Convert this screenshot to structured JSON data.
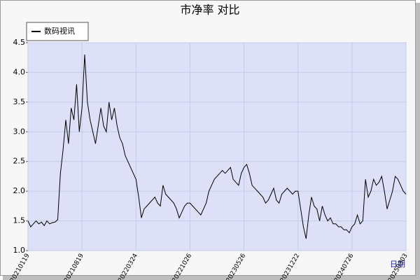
{
  "chart_data": {
    "type": "line",
    "title": "市净率  对比",
    "x_label": "日期",
    "categories": [
      "20210119",
      null,
      null,
      null,
      null,
      null,
      null,
      null,
      null,
      null,
      null,
      null,
      null,
      null,
      null,
      null,
      null,
      null,
      null,
      null,
      "20210819",
      null,
      null,
      null,
      null,
      null,
      null,
      null,
      null,
      null,
      null,
      null,
      null,
      null,
      null,
      null,
      null,
      null,
      null,
      null,
      "20220324",
      null,
      null,
      null,
      null,
      null,
      null,
      null,
      null,
      null,
      null,
      null,
      null,
      null,
      null,
      null,
      null,
      null,
      null,
      null,
      "20221026",
      null,
      null,
      null,
      null,
      null,
      null,
      null,
      null,
      null,
      null,
      null,
      null,
      null,
      null,
      null,
      null,
      null,
      null,
      null,
      "20230526",
      null,
      null,
      null,
      null,
      null,
      null,
      null,
      null,
      null,
      null,
      null,
      null,
      null,
      null,
      null,
      null,
      null,
      null,
      null,
      "20231222",
      null,
      null,
      null,
      null,
      null,
      null,
      null,
      null,
      null,
      null,
      null,
      null,
      null,
      null,
      null,
      null,
      null,
      null,
      null,
      "20240726",
      null,
      null,
      null,
      null,
      null,
      null,
      null,
      null,
      null,
      null,
      null,
      null,
      null,
      null,
      null,
      null,
      null,
      null,
      null,
      "20250303"
    ],
    "series": [
      {
        "name": "数码视讯",
        "color": "#000000",
        "values": [
          1.5,
          1.4,
          1.45,
          1.5,
          1.45,
          1.48,
          1.42,
          1.5,
          1.45,
          1.47,
          1.48,
          1.52,
          2.3,
          2.7,
          3.2,
          2.8,
          3.4,
          3.2,
          3.8,
          3.0,
          3.4,
          4.3,
          3.5,
          3.2,
          3.0,
          2.8,
          3.1,
          3.4,
          3.1,
          3.0,
          3.5,
          3.2,
          3.4,
          3.1,
          2.9,
          2.8,
          2.6,
          2.5,
          2.4,
          2.3,
          2.2,
          1.9,
          1.55,
          1.7,
          1.75,
          1.8,
          1.85,
          1.9,
          1.8,
          1.75,
          2.1,
          1.95,
          1.9,
          1.85,
          1.8,
          1.7,
          1.55,
          1.65,
          1.75,
          1.8,
          1.8,
          1.75,
          1.7,
          1.65,
          1.6,
          1.7,
          1.8,
          2.0,
          2.1,
          2.2,
          2.25,
          2.3,
          2.35,
          2.3,
          2.35,
          2.4,
          2.2,
          2.15,
          2.1,
          2.3,
          2.4,
          2.45,
          2.3,
          2.1,
          2.05,
          2.0,
          1.95,
          1.9,
          1.8,
          1.85,
          1.95,
          2.05,
          1.85,
          1.8,
          1.95,
          2.0,
          2.05,
          2.0,
          1.95,
          2.0,
          2.0,
          1.7,
          1.4,
          1.2,
          1.6,
          1.9,
          1.75,
          1.7,
          1.5,
          1.75,
          1.6,
          1.5,
          1.55,
          1.45,
          1.45,
          1.4,
          1.4,
          1.35,
          1.35,
          1.3,
          1.4,
          1.45,
          1.6,
          1.45,
          1.5,
          2.2,
          1.9,
          2.0,
          2.2,
          2.1,
          2.15,
          2.25,
          2.0,
          1.7,
          1.85,
          2.0,
          2.25,
          2.2,
          2.1,
          2.0,
          1.95
        ]
      }
    ],
    "ylim": [
      1,
      4.5
    ],
    "yticks": [
      {
        "value": 1,
        "label": "1.0"
      },
      {
        "value": 1.5,
        "label": "1.5"
      },
      {
        "value": 2,
        "label": "2.0"
      },
      {
        "value": 2.5,
        "label": "2.5"
      },
      {
        "value": 3,
        "label": "3.0"
      },
      {
        "value": 3.5,
        "label": "3.5"
      },
      {
        "value": 4,
        "label": "4.0"
      },
      {
        "value": 4.5,
        "label": "4.5"
      }
    ],
    "grid": true,
    "legend": "top-left"
  }
}
